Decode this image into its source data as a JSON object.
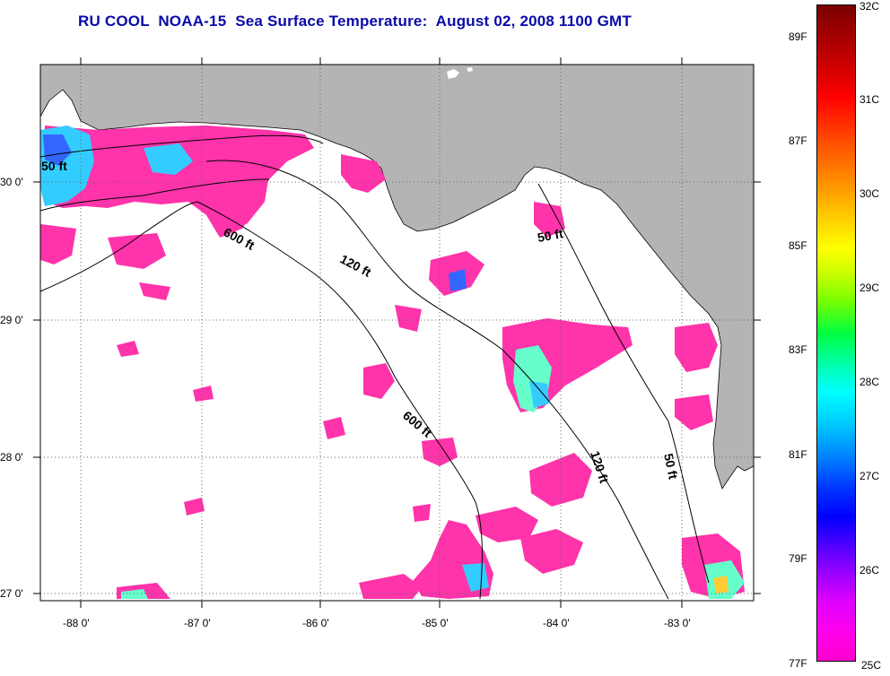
{
  "title": "RU COOL  NOAA-15  Sea Surface Temperature:  August 02, 2008 1100 GMT",
  "map": {
    "lon_labels": [
      "-88 0'",
      "-87 0'",
      "-86 0'",
      "-85 0'",
      "-84 0'",
      "-83 0'"
    ],
    "lat_labels": [
      "30 0'",
      "29 0'",
      "28 0'",
      "27 0'"
    ],
    "contour_labels": [
      "50 ft",
      "600 ft",
      "120 ft",
      "50 ft",
      "600 ft",
      "120 ft",
      "50 ft"
    ],
    "colors": {
      "land": "#b4b4b4",
      "ocean": "#ffffff",
      "sst_warm": "#ff33aa",
      "sst_cool": "#33ccff"
    }
  },
  "colorbar": {
    "celsius_labels": [
      "32C",
      "31C",
      "30C",
      "29C",
      "28C",
      "27C",
      "26C",
      "25C"
    ],
    "fahrenheit_labels": [
      "89F",
      "87F",
      "85F",
      "83F",
      "81F",
      "79F",
      "77F"
    ],
    "range_celsius": [
      25,
      32
    ]
  }
}
